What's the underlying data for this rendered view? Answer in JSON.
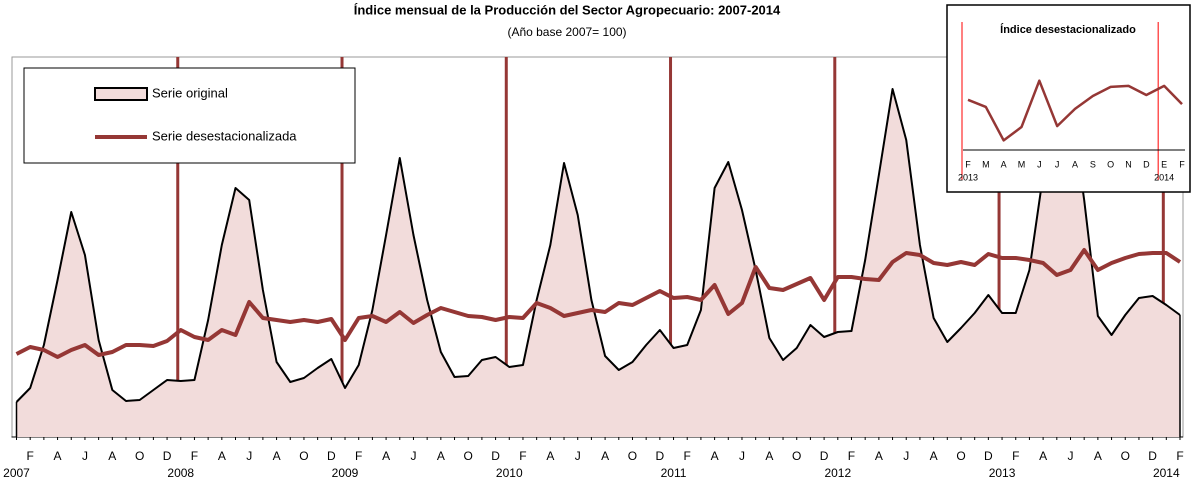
{
  "chart_data": [
    {
      "type": "line",
      "title": "Índice mensual de la Producción del Sector Agropecuario: 2007-2014",
      "subtitle": "(Año base 2007= 100)",
      "categories": [
        null,
        "F",
        null,
        "A",
        null,
        "J",
        null,
        "A",
        null,
        "O",
        null,
        "D",
        null,
        "F",
        null,
        "A",
        null,
        "J",
        null,
        "A",
        null,
        "O",
        null,
        "D",
        null,
        "F",
        null,
        "A",
        null,
        "J",
        null,
        "A",
        null,
        "O",
        null,
        "D",
        null,
        "F",
        null,
        "A",
        null,
        "J",
        null,
        "A",
        null,
        "O",
        null,
        "D",
        null,
        "F",
        null,
        "A",
        null,
        "J",
        null,
        "A",
        null,
        "O",
        null,
        "D",
        null,
        "F",
        null,
        "A",
        null,
        "J",
        null,
        "A",
        null,
        "O",
        null,
        "D",
        null,
        "F",
        null,
        "A",
        null,
        "J",
        null,
        "A",
        null,
        "O",
        null,
        "D",
        null,
        "F"
      ],
      "x_groups": [
        "2007",
        null,
        null,
        null,
        null,
        null,
        null,
        null,
        null,
        null,
        null,
        null,
        "2008",
        null,
        null,
        null,
        null,
        null,
        null,
        null,
        null,
        null,
        null,
        null,
        "2009",
        null,
        null,
        null,
        null,
        null,
        null,
        null,
        null,
        null,
        null,
        null,
        "2010",
        null,
        null,
        null,
        null,
        null,
        null,
        null,
        null,
        null,
        null,
        null,
        "2011",
        null,
        null,
        null,
        null,
        null,
        null,
        null,
        null,
        null,
        null,
        null,
        "2012",
        null,
        null,
        null,
        null,
        null,
        null,
        null,
        null,
        null,
        null,
        null,
        "2013",
        null,
        null,
        null,
        null,
        null,
        null,
        null,
        null,
        null,
        null,
        null,
        "2014",
        null
      ],
      "series": [
        {
          "name": "Serie original",
          "color": "#000000",
          "fill": "#f2dcdb",
          "area": true,
          "values": [
            77.5,
            84.5,
            106,
            138.5,
            172.5,
            151,
            108.5,
            83.5,
            78,
            78.5,
            83.5,
            88.5,
            88,
            88.5,
            118.5,
            156,
            184.5,
            178.5,
            133.5,
            97.5,
            87.5,
            89.5,
            94.5,
            99,
            84.5,
            96,
            123.5,
            161,
            199.5,
            161,
            128.5,
            102.5,
            90,
            90.5,
            98.5,
            100,
            95,
            96,
            128.5,
            156,
            197,
            171,
            128.5,
            100.5,
            93.5,
            97.5,
            106,
            113.5,
            104.5,
            106,
            123.5,
            184.5,
            197.5,
            173.5,
            143.5,
            109.5,
            98.5,
            104.5,
            116,
            110,
            112.5,
            113,
            148.5,
            191,
            234,
            208.5,
            156,
            119.5,
            107.5,
            114.5,
            122,
            131,
            122,
            122,
            143.5,
            191,
            218.5,
            228.5,
            178.5,
            120.5,
            111,
            121,
            129.5,
            130.5,
            126,
            121
          ]
        },
        {
          "name": "Serie desestacionalizada",
          "color": "#953735",
          "values": [
            101.5,
            105,
            103.5,
            100,
            103.5,
            106,
            101,
            102.5,
            106,
            106,
            105.5,
            108,
            113.5,
            110,
            108.5,
            113.5,
            111,
            127.5,
            119.5,
            118.5,
            117.5,
            118.5,
            117.5,
            119,
            108.5,
            119.5,
            120.5,
            117.5,
            122.5,
            117,
            121,
            124.5,
            122.5,
            120.5,
            120,
            118.5,
            120,
            119.5,
            127,
            124.5,
            120.5,
            122,
            123.5,
            122.5,
            127,
            126,
            129.5,
            133,
            129.5,
            130,
            128.5,
            136,
            121.5,
            127,
            145,
            134.5,
            133.5,
            136.5,
            139.5,
            128.5,
            140,
            140,
            139,
            138.5,
            147.5,
            152,
            151,
            147,
            146,
            147.5,
            146,
            151.5,
            149.5,
            149.5,
            148.5,
            147,
            141,
            143.5,
            153.5,
            143.5,
            147,
            149.5,
            151.5,
            152,
            152,
            147.5
          ]
        }
      ],
      "ylim": [
        60,
        250
      ],
      "legend": "top-left"
    },
    {
      "type": "line",
      "title": "Índice desestacionalizado",
      "categories": [
        "F",
        "M",
        "A",
        "M",
        "J",
        "J",
        "A",
        "S",
        "O",
        "N",
        "D",
        "E",
        "F"
      ],
      "x_groups": [
        "2013",
        null,
        null,
        null,
        null,
        null,
        null,
        null,
        null,
        null,
        null,
        "2014",
        null
      ],
      "series": [
        {
          "color": "#953735",
          "values": [
            149.5,
            148,
            141,
            143.8,
            153.5,
            144,
            147.6,
            150.3,
            152.2,
            152.4,
            150.5,
            152.4,
            148.6
          ]
        }
      ],
      "ylim": [
        139,
        162
      ]
    }
  ]
}
